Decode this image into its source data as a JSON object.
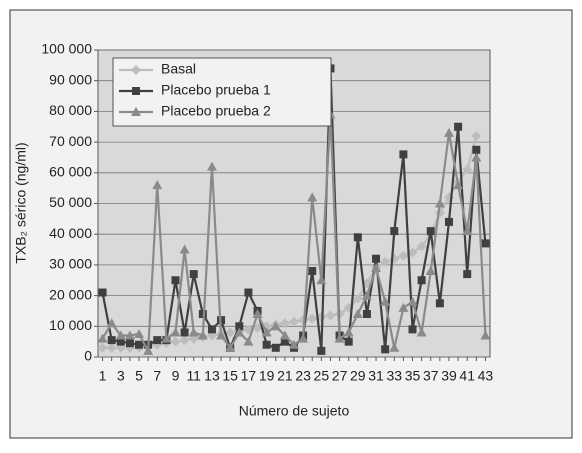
{
  "chart_data": {
    "type": "line",
    "ylabel": "TXB₂ sérico (ng/ml)",
    "xlabel": "Número de sujeto",
    "categories": [
      "1",
      null,
      "3",
      null,
      "5",
      null,
      "7",
      null,
      "9",
      null,
      "11",
      null,
      "13",
      null,
      "15",
      null,
      "17",
      null,
      "19",
      null,
      "21",
      null,
      "23",
      null,
      "25",
      null,
      "27",
      null,
      "29",
      null,
      "31",
      null,
      "33",
      null,
      "35",
      null,
      "37",
      null,
      "39",
      null,
      "41",
      null,
      "43"
    ],
    "series": [
      {
        "name": "Basal",
        "color": "#bdbdbd",
        "marker": "diamond",
        "values": [
          3000,
          3000,
          3000,
          3000,
          3000,
          4000,
          4000,
          4500,
          5000,
          5500,
          6000,
          6500,
          7000,
          7500,
          8000,
          8500,
          9000,
          9500,
          10000,
          10500,
          11000,
          11500,
          12000,
          12500,
          13000,
          13500,
          14000,
          16000,
          19000,
          24000,
          29000,
          31000,
          32000,
          33000,
          34000,
          36000,
          40000,
          47000,
          52000,
          57000,
          61000,
          72000,
          null
        ]
      },
      {
        "name": "Placebo prueba 1",
        "color": "#404040",
        "marker": "square",
        "values": [
          21000,
          5500,
          5000,
          4500,
          4000,
          4000,
          5500,
          5500,
          25000,
          8000,
          27000,
          14000,
          9000,
          12000,
          3000,
          10000,
          21000,
          15000,
          4000,
          3000,
          5000,
          3000,
          7000,
          28000,
          2000,
          94000,
          7000,
          5000,
          39000,
          14000,
          32000,
          2500,
          41000,
          66000,
          9000,
          25000,
          41000,
          17500,
          44000,
          75000,
          27000,
          67500,
          37000
        ]
      },
      {
        "name": "Placebo prueba 2",
        "color": "#8a8a8a",
        "marker": "triangle",
        "values": [
          6000,
          11000,
          7000,
          7000,
          7500,
          2000,
          56000,
          6000,
          8000,
          35000,
          8000,
          7000,
          62000,
          7000,
          3000,
          8000,
          5000,
          14000,
          8000,
          10000,
          7000,
          4000,
          6000,
          52000,
          25000,
          79000,
          6000,
          8000,
          14000,
          20000,
          29000,
          18000,
          3000,
          16000,
          18000,
          8000,
          28000,
          50000,
          73000,
          56000,
          41000,
          65000,
          7000
        ]
      }
    ],
    "ylim": [
      0,
      100000
    ],
    "yticks": [
      0,
      {
        "value": 10000,
        "label": "10 000"
      },
      {
        "value": 20000,
        "label": "20 000"
      },
      {
        "value": 30000,
        "label": "30 000"
      },
      {
        "value": 40000,
        "label": "40 000"
      },
      {
        "value": 50000,
        "label": "50 000"
      },
      {
        "value": 60000,
        "label": "60 000"
      },
      {
        "value": 70000,
        "label": "70 000"
      },
      {
        "value": 80000,
        "label": "80 000"
      },
      {
        "value": 90000,
        "label": "90 000"
      },
      {
        "value": 100000,
        "label": "100 000"
      }
    ],
    "grid": true,
    "legend": "upper-left"
  }
}
